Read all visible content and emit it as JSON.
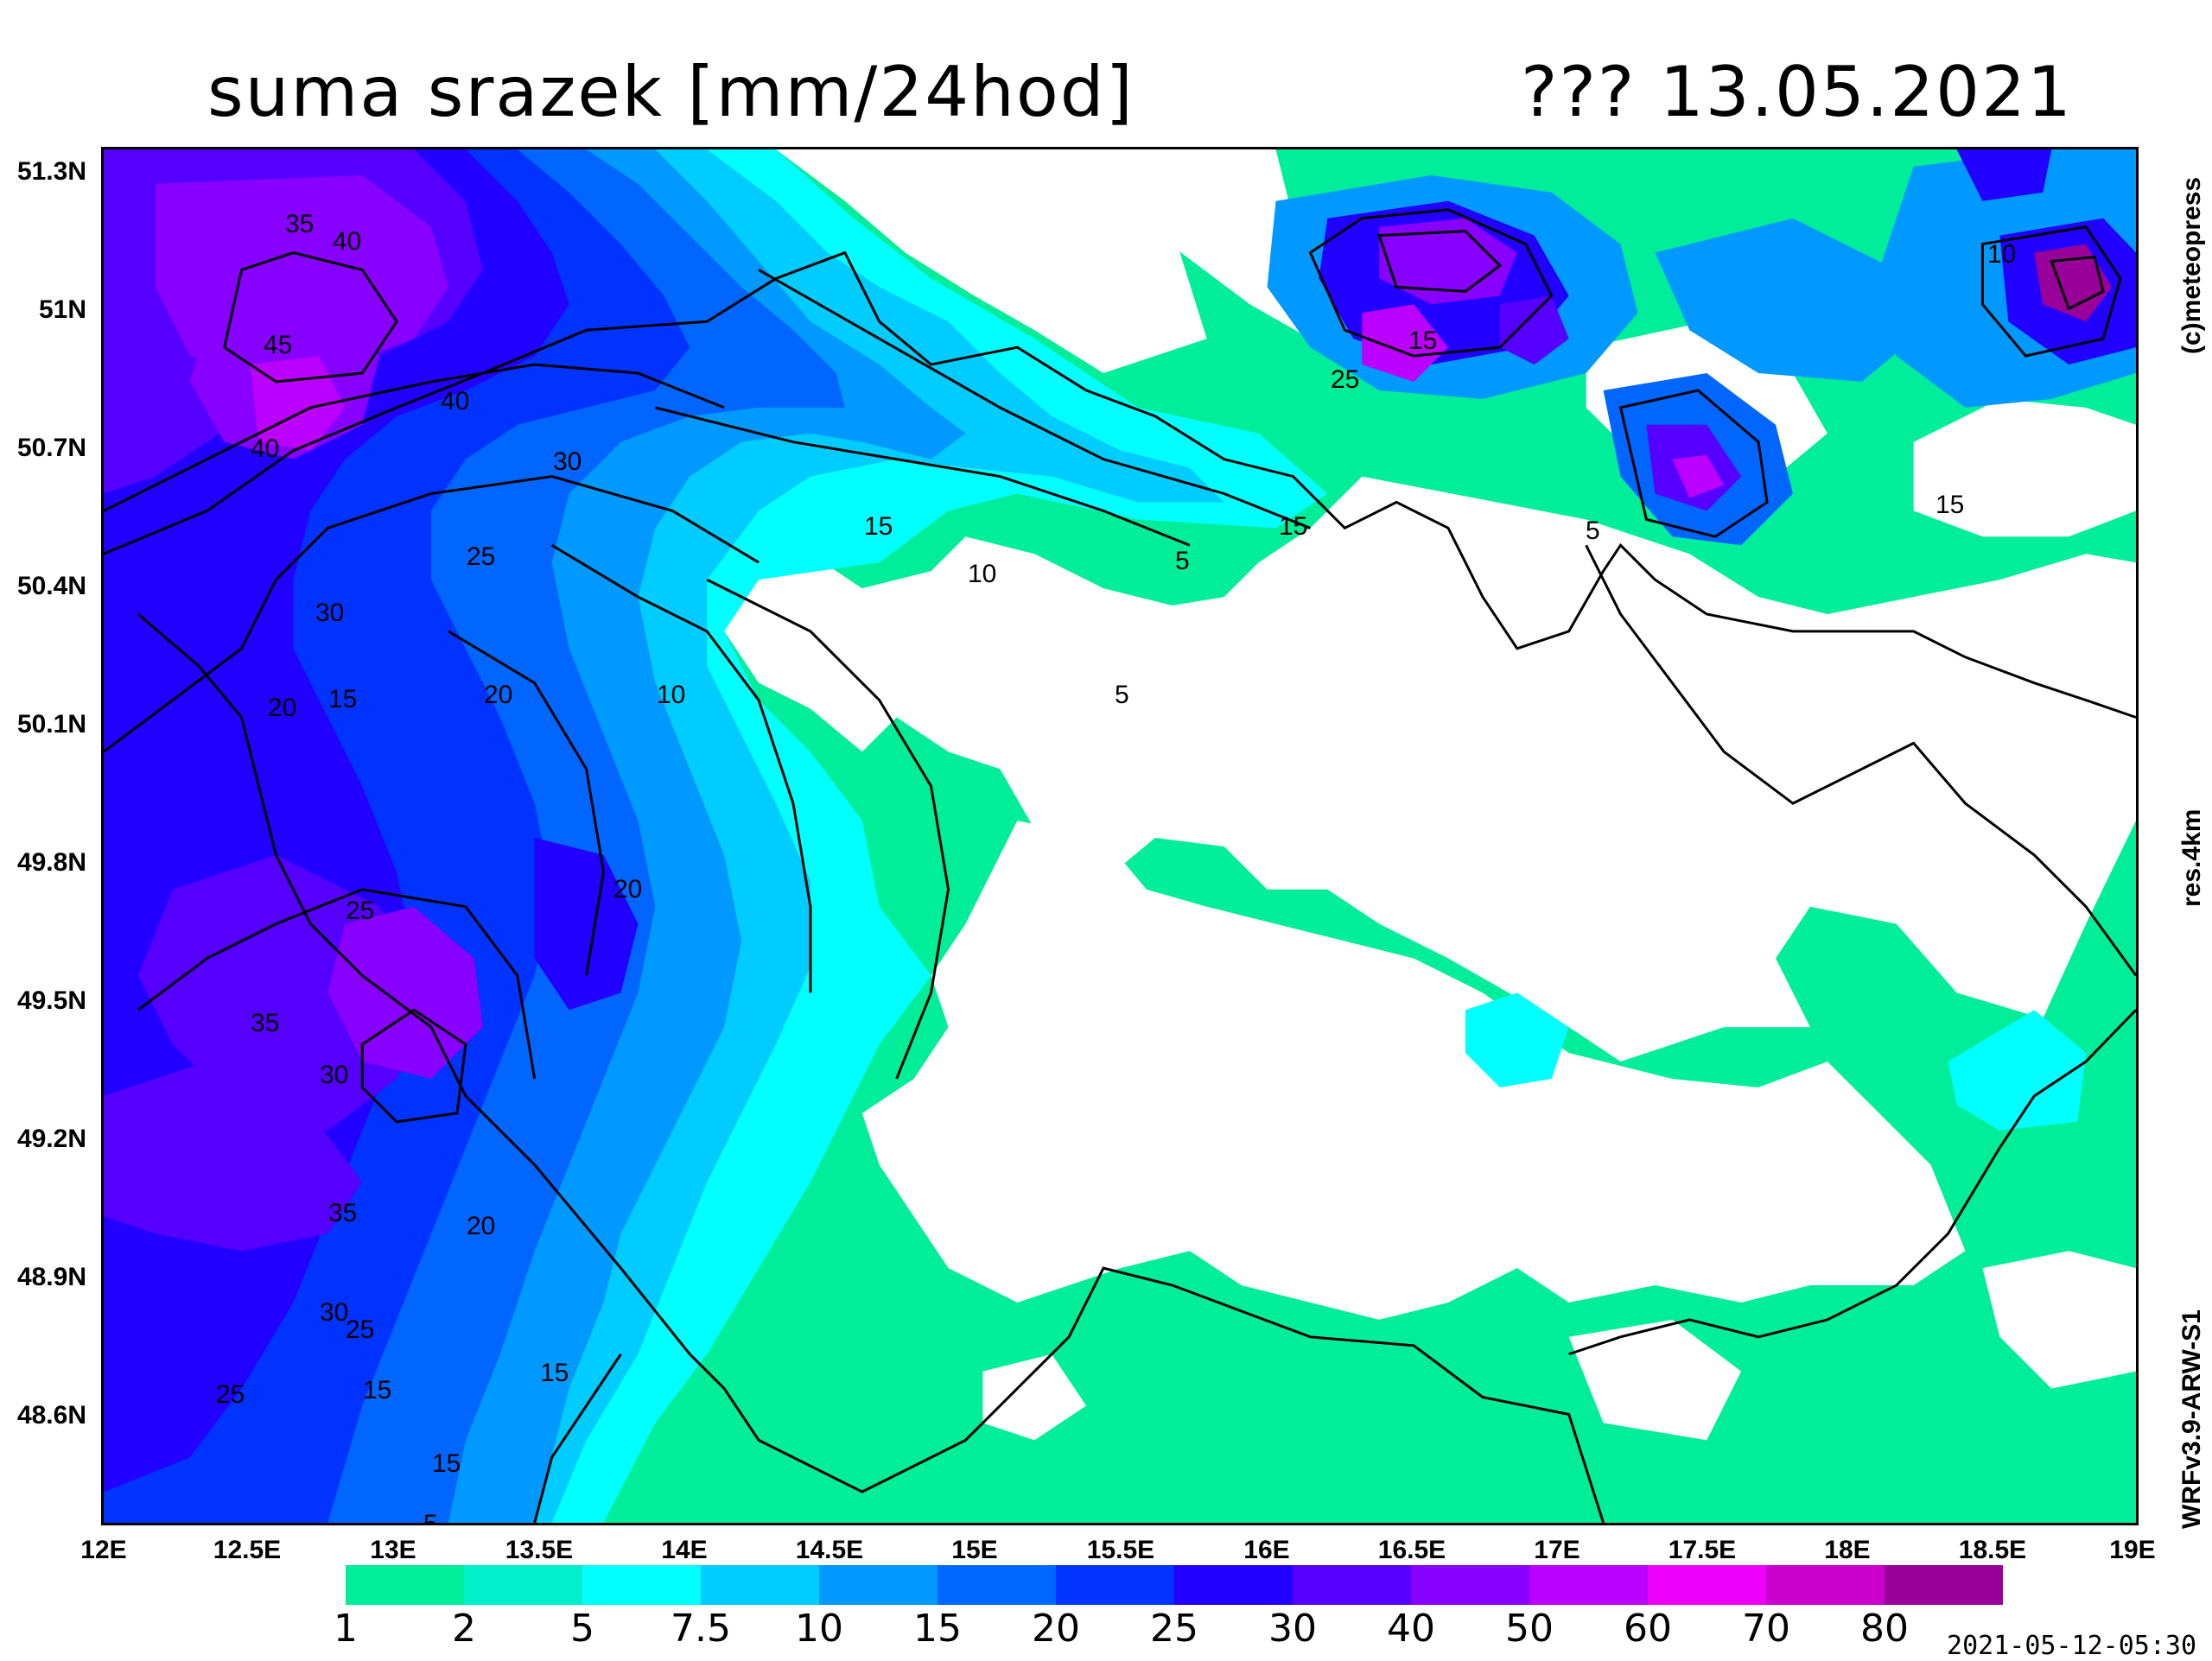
{
  "title_left": "suma srazek [mm/24hod]",
  "title_right": "??? 13.05.2021",
  "side_labels": {
    "copyright": "(c)meteopress",
    "resolution": "res.4km",
    "model": "WRFv3.9-ARW-S1"
  },
  "timestamp": "2021-05-12-05:30",
  "lat_ticks": [
    "51.3N",
    "51N",
    "50.7N",
    "50.4N",
    "50.1N",
    "49.8N",
    "49.5N",
    "49.2N",
    "48.9N",
    "48.6N"
  ],
  "lon_ticks": [
    "12E",
    "12.5E",
    "13E",
    "13.5E",
    "14E",
    "14.5E",
    "15E",
    "15.5E",
    "16E",
    "16.5E",
    "17E",
    "17.5E",
    "18E",
    "18.5E",
    "19E"
  ],
  "legend": {
    "labels": [
      "1",
      "2",
      "5",
      "7.5",
      "10",
      "15",
      "20",
      "25",
      "30",
      "40",
      "50",
      "60",
      "70",
      "80"
    ],
    "colors": [
      "#00ee99",
      "#00f0cc",
      "#00ffff",
      "#00ccff",
      "#0099ff",
      "#0066ff",
      "#0033ff",
      "#2200ff",
      "#5500ff",
      "#8800ff",
      "#bb00ff",
      "#ee00ff",
      "#cc00cc",
      "#990099"
    ]
  },
  "contour_labels": [
    "35",
    "40",
    "45",
    "40",
    "40",
    "30",
    "25",
    "30",
    "20",
    "15",
    "20",
    "15",
    "10",
    "5",
    "15",
    "10",
    "5",
    "25",
    "15",
    "10",
    "15",
    "5",
    "20",
    "25",
    "35",
    "30",
    "35",
    "25",
    "20",
    "30",
    "15",
    "25",
    "15",
    "15",
    "5"
  ]
}
